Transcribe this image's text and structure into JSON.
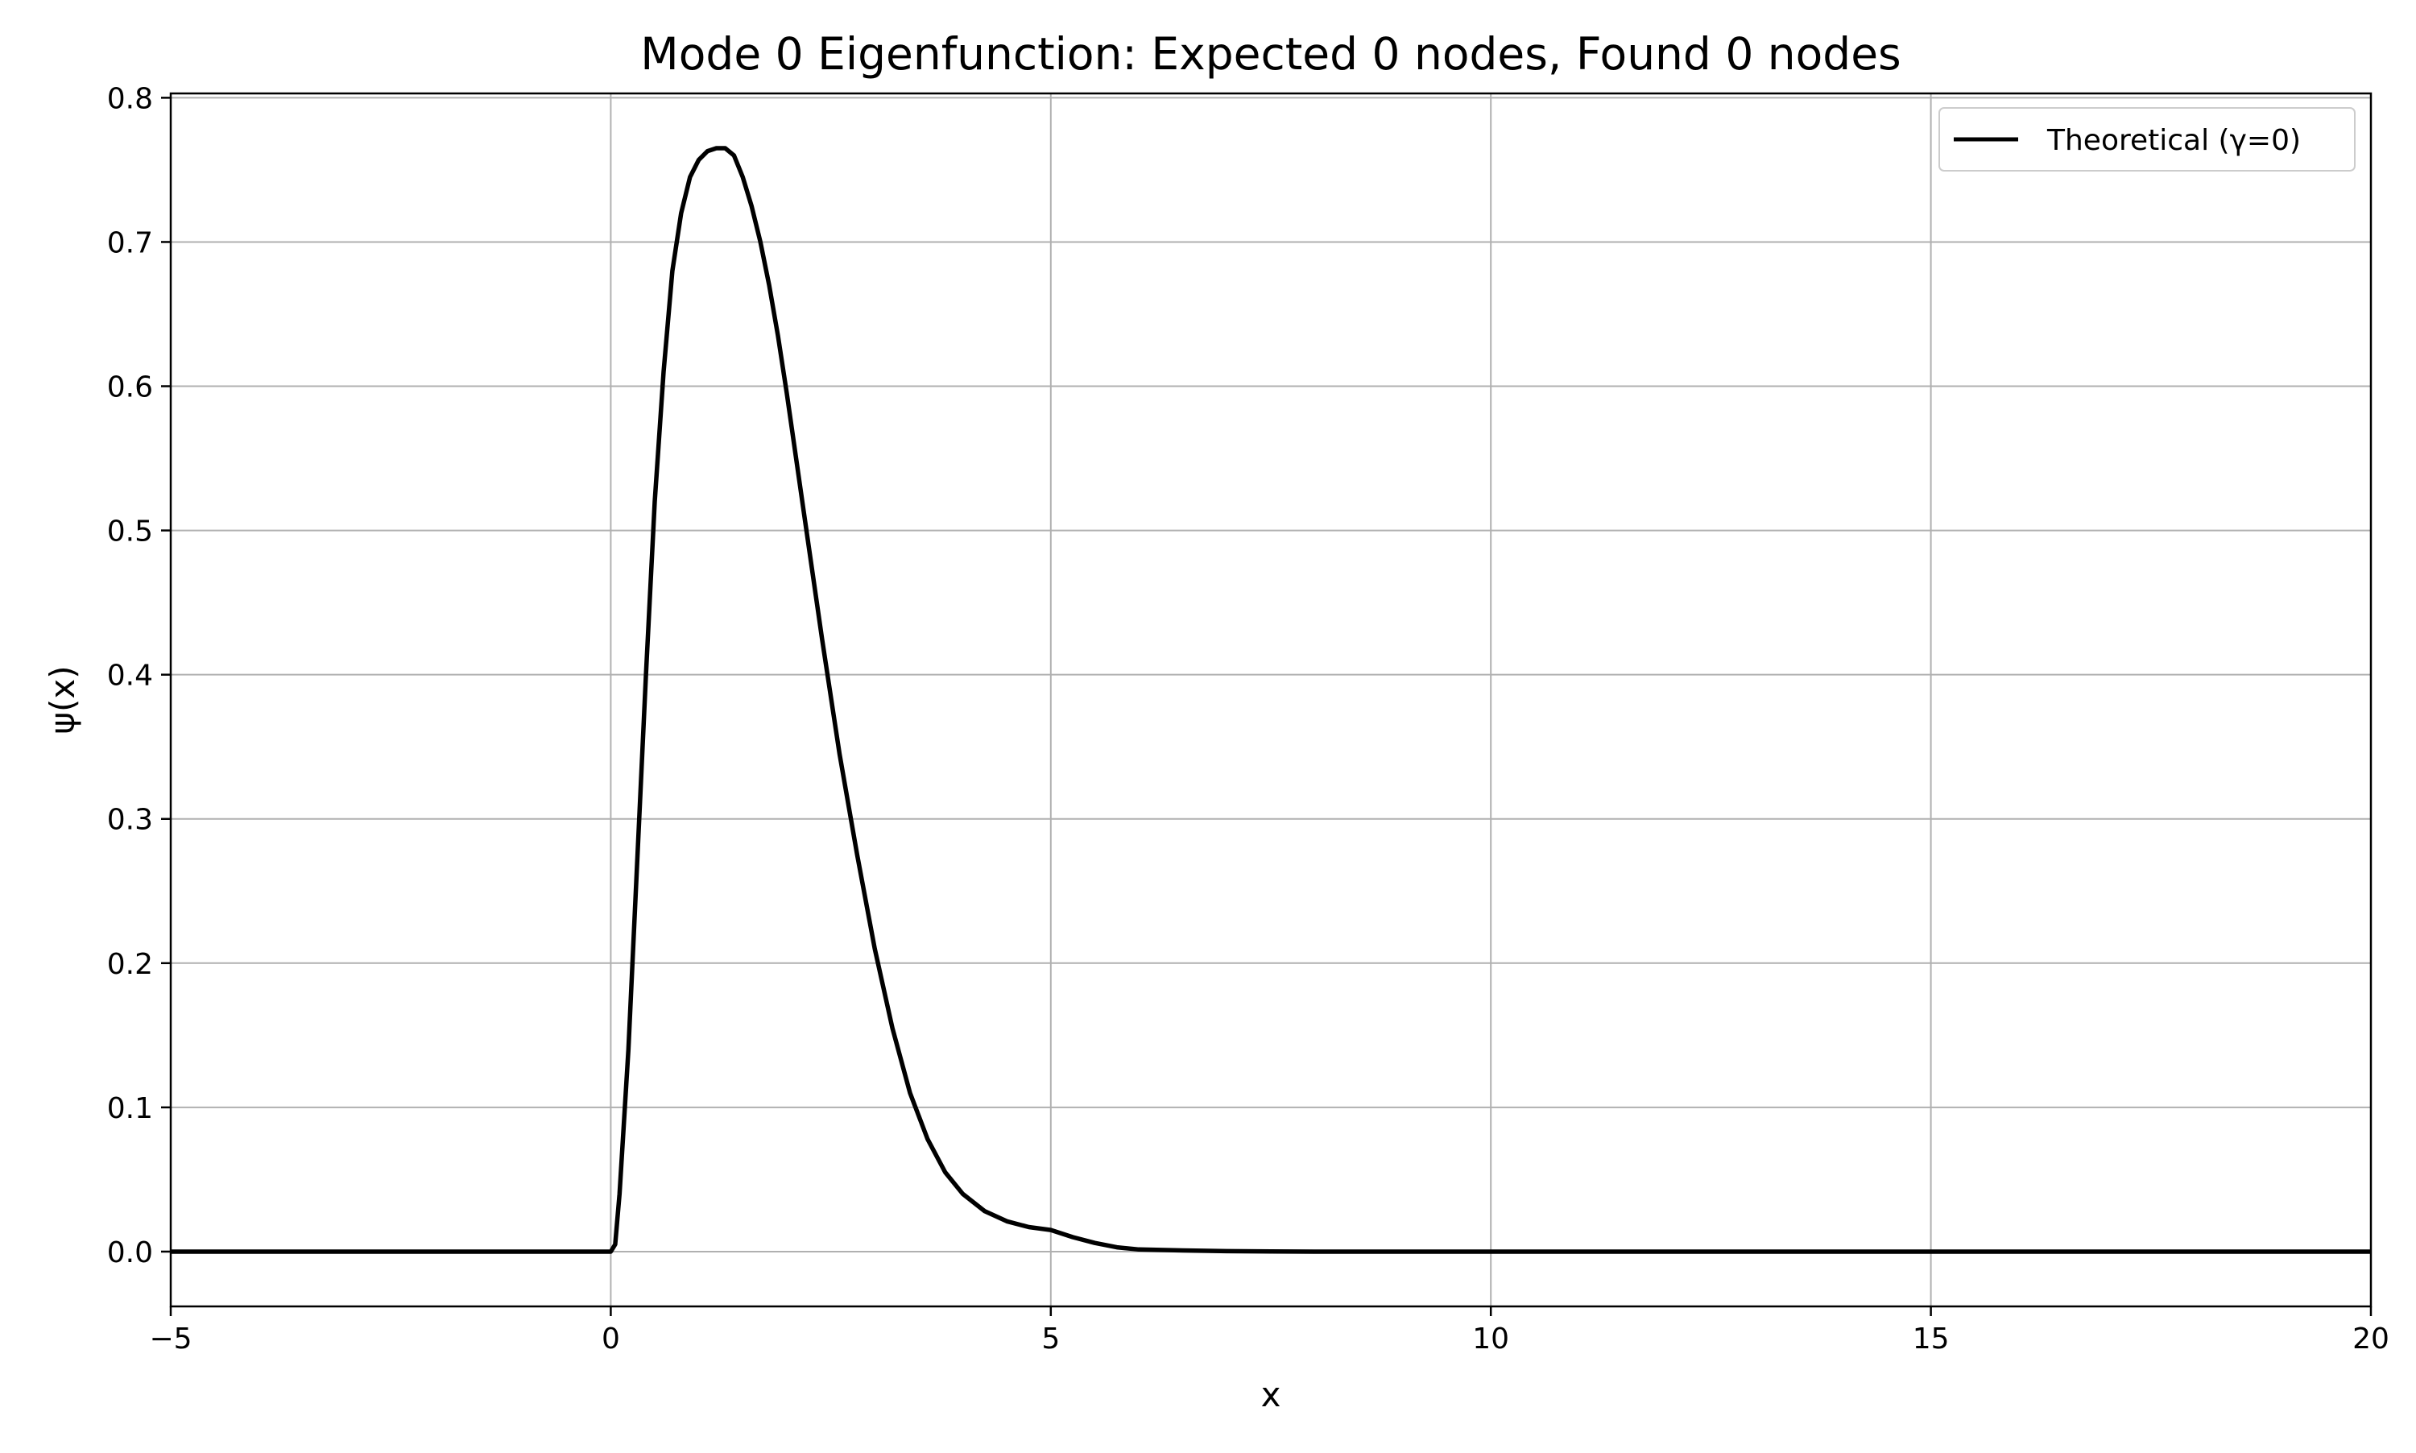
{
  "chart_data": {
    "type": "line",
    "title": "Mode 0 Eigenfunction: Expected 0 nodes, Found 0 nodes",
    "xlabel": "x",
    "ylabel": "ψ(x)",
    "xlim": [
      -5,
      20
    ],
    "ylim": [
      -0.038,
      0.803
    ],
    "x_ticks": [
      -5,
      0,
      5,
      10,
      15,
      20
    ],
    "x_tick_labels": [
      "−5",
      "0",
      "5",
      "10",
      "15",
      "20"
    ],
    "y_ticks": [
      0.0,
      0.1,
      0.2,
      0.3,
      0.4,
      0.5,
      0.6,
      0.7,
      0.8
    ],
    "y_tick_labels": [
      "0.0",
      "0.1",
      "0.2",
      "0.3",
      "0.4",
      "0.5",
      "0.6",
      "0.7",
      "0.8"
    ],
    "grid": true,
    "legend_position": "top-right",
    "series": [
      {
        "name": "Theoretical (γ=0)",
        "color": "#000000",
        "x": [
          -5,
          -2.5,
          0,
          0.05,
          0.1,
          0.2,
          0.3,
          0.4,
          0.5,
          0.6,
          0.7,
          0.8,
          0.9,
          1.0,
          1.1,
          1.2,
          1.3,
          1.4,
          1.5,
          1.6,
          1.7,
          1.8,
          1.9,
          2.0,
          2.2,
          2.4,
          2.6,
          2.8,
          3.0,
          3.2,
          3.4,
          3.6,
          3.8,
          4.0,
          4.25,
          4.5,
          4.75,
          5.0,
          5.25,
          5.5,
          5.75,
          6.0,
          6.5,
          7.0,
          7.5,
          8.0,
          10,
          15,
          20
        ],
        "y": [
          0,
          0,
          0,
          0.005,
          0.04,
          0.14,
          0.27,
          0.4,
          0.52,
          0.61,
          0.68,
          0.72,
          0.745,
          0.757,
          0.763,
          0.765,
          0.765,
          0.76,
          0.745,
          0.725,
          0.7,
          0.67,
          0.635,
          0.595,
          0.51,
          0.425,
          0.345,
          0.275,
          0.21,
          0.155,
          0.11,
          0.078,
          0.055,
          0.04,
          0.028,
          0.021,
          0.017,
          0.015,
          0.01,
          0.006,
          0.003,
          0.0015,
          0.0008,
          0.0003,
          0.0001,
          0,
          0,
          0,
          0
        ]
      }
    ]
  }
}
